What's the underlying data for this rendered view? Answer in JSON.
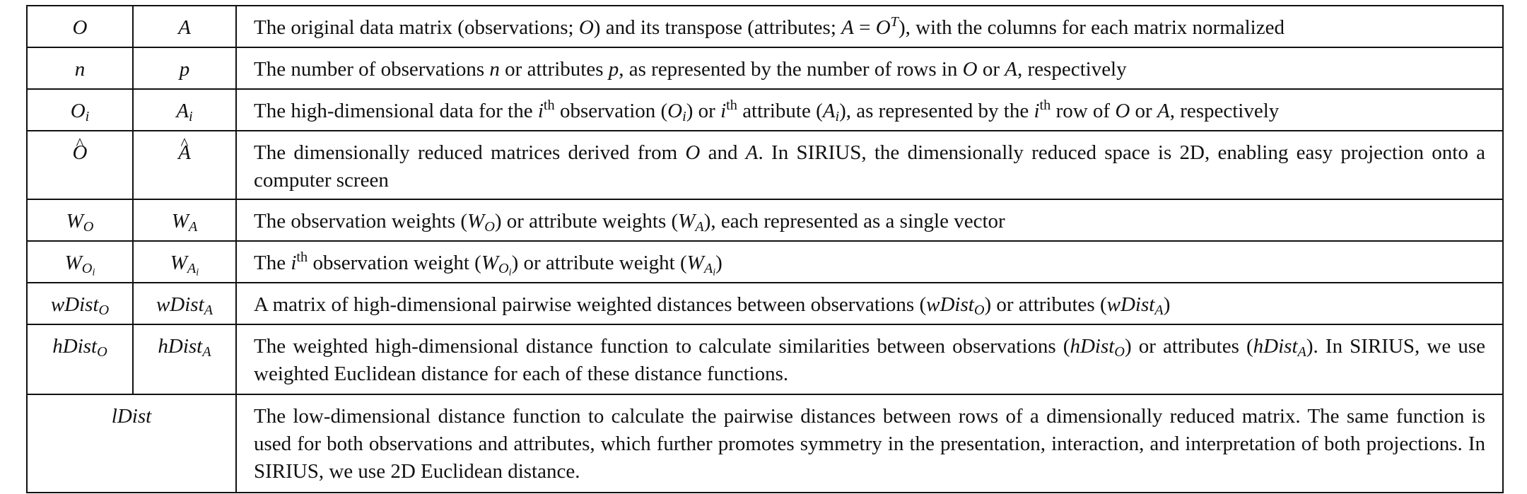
{
  "table": {
    "rows": [
      {
        "sym_o": "O",
        "sym_a": "A",
        "desc": {
          "p1": "The original data matrix (observations; ",
          "m1": "O",
          "p2": ") and its transpose (attributes; ",
          "m2a": "A",
          "eq": " = ",
          "m2b": "O",
          "sup": "T",
          "p3": "), with the columns for each matrix normalized"
        }
      },
      {
        "sym_o": "n",
        "sym_a": "p",
        "desc": {
          "p1": "The number of observations ",
          "m1": "n",
          "p2": " or attributes ",
          "m2": "p",
          "p3": ", as represented by the number of rows in ",
          "m3": "O",
          "p4": " or ",
          "m4": "A",
          "p5": ", respectively"
        }
      },
      {
        "sym_o": "O",
        "sym_o_sub": "i",
        "sym_a": "A",
        "sym_a_sub": "i",
        "desc": {
          "p1": "The high-dimensional data for the ",
          "i1": "i",
          "th1": "th",
          "p2": " observation (",
          "m1": "O",
          "m1s": "i",
          "p3": ") or ",
          "i2": "i",
          "th2": "th",
          "p4": " attribute (",
          "m2": "A",
          "m2s": "i",
          "p5": "), as represented by the ",
          "i3": "i",
          "th3": "th",
          "p6": " row of ",
          "m3": "O",
          "p7": " or ",
          "m4": "A",
          "p8": ", respectively"
        }
      },
      {
        "sym_o": "O",
        "sym_a": "A",
        "desc": {
          "p1": "The dimensionally reduced matrices derived from ",
          "m1": "O",
          "p2": " and ",
          "m2": "A",
          "p3": ".  In SIRIUS, the dimensionally reduced space is 2D, enabling easy projection onto a computer screen"
        }
      },
      {
        "sym_o": "W",
        "sym_o_sub": "O",
        "sym_a": "W",
        "sym_a_sub": "A",
        "desc": {
          "p1": "The observation weights (",
          "m1": "W",
          "m1s": "O",
          "p2": ") or attribute weights (",
          "m2": "W",
          "m2s": "A",
          "p3": "), each represented as a single vector"
        }
      },
      {
        "sym_o": "W",
        "sym_o_sub": "O",
        "sym_o_subsub": "i",
        "sym_a": "W",
        "sym_a_sub": "A",
        "sym_a_subsub": "i",
        "desc": {
          "p1": "The ",
          "i1": "i",
          "th1": "th",
          "p2": " observation weight (",
          "m1": "W",
          "m1s": "O",
          "m1ss": "i",
          "p3": ") or attribute weight (",
          "m2": "W",
          "m2s": "A",
          "m2ss": "i",
          "p4": ")"
        }
      },
      {
        "sym_o": "wDist",
        "sym_o_sub": "O",
        "sym_a": "wDist",
        "sym_a_sub": "A",
        "desc": {
          "p1": "A matrix of high-dimensional pairwise weighted distances between observations (",
          "m1": "wDist",
          "m1s": "O",
          "p2": ") or attributes (",
          "m2": "wDist",
          "m2s": "A",
          "p3": ")"
        }
      },
      {
        "sym_o": "hDist",
        "sym_o_sub": "O",
        "sym_a": "hDist",
        "sym_a_sub": "A",
        "desc": {
          "p1": "The weighted high-dimensional distance function to calculate similarities between observations (",
          "m1": "hDist",
          "m1s": "O",
          "p2": ") or attributes (",
          "m2": "hDist",
          "m2s": "A",
          "p3": ").  In SIRIUS, we use weighted Euclidean distance for each of these distance functions."
        }
      },
      {
        "sym": "lDist",
        "desc": {
          "p1": "The low-dimensional distance function to calculate the pairwise distances between rows of a dimensionally reduced matrix.  The same function is used for both observations and attributes, which further promotes symmetry in the presentation, interaction, and interpretation of both projections.  In SIRIUS, we use 2D Euclidean distance."
        }
      }
    ]
  }
}
